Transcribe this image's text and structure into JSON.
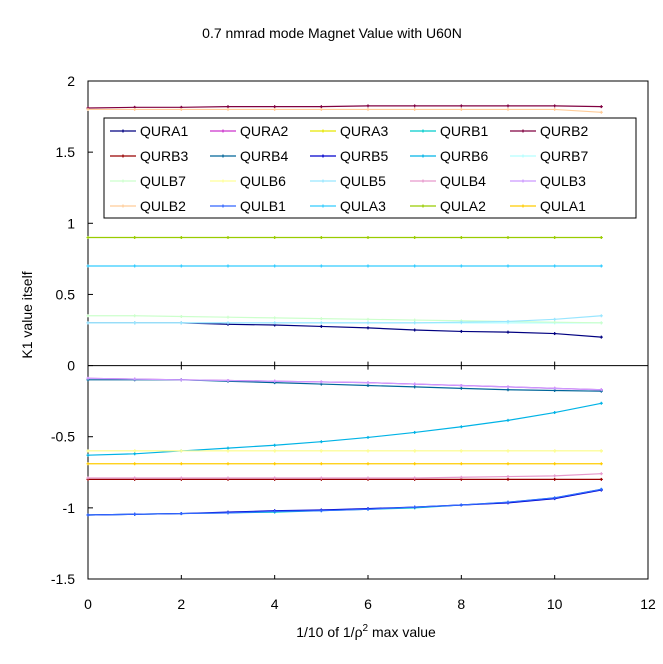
{
  "chart_data": {
    "type": "line",
    "title": "0.7 nmrad mode Magnet Value with U60N",
    "xlabel_prefix": "1/10 of 1/",
    "xlabel_rho": "ρ",
    "xlabel_sup": "2",
    "xlabel_suffix": " max value",
    "ylabel": "K1 value itself",
    "xlim": [
      0,
      12
    ],
    "ylim": [
      -1.5,
      2
    ],
    "xticks": [
      0,
      2,
      4,
      6,
      8,
      10,
      12
    ],
    "yticks": [
      -1.5,
      -1,
      -0.5,
      0,
      0.5,
      1,
      1.5,
      2
    ],
    "ytick_labels": [
      "-1.5",
      "-1",
      "-0.5",
      "0",
      "0.5",
      "1",
      "1.5",
      "2"
    ],
    "xtick_labels": [
      "0",
      "2",
      "4",
      "6",
      "8",
      "10",
      "12"
    ],
    "grid": false,
    "legend_position": "top",
    "x": [
      0,
      1,
      2,
      3,
      4,
      5,
      6,
      7,
      8,
      9,
      10,
      11
    ],
    "series": [
      {
        "name": "QURA1",
        "color": "#000080",
        "values": [
          0.3,
          0.3,
          0.3,
          0.29,
          0.285,
          0.275,
          0.265,
          0.25,
          0.24,
          0.235,
          0.225,
          0.2
        ]
      },
      {
        "name": "QURA2",
        "color": "#cc33cc",
        "values": [
          -0.09,
          -0.095,
          -0.1,
          -0.105,
          -0.11,
          -0.115,
          -0.12,
          -0.13,
          -0.14,
          -0.15,
          -0.16,
          -0.17
        ]
      },
      {
        "name": "QURA3",
        "color": "#e6e600",
        "values": [
          -0.6,
          -0.6,
          -0.6,
          -0.6,
          -0.6,
          -0.6,
          -0.6,
          -0.6,
          -0.6,
          -0.6,
          -0.6,
          -0.6
        ]
      },
      {
        "name": "QURB1",
        "color": "#00cccc",
        "values": [
          -1.05,
          -1.045,
          -1.04,
          -1.035,
          -1.03,
          -1.02,
          -1.01,
          -1.0,
          -0.98,
          -0.96,
          -0.93,
          -0.87
        ]
      },
      {
        "name": "QURB2",
        "color": "#800040",
        "values": [
          1.81,
          1.815,
          1.815,
          1.82,
          1.82,
          1.82,
          1.825,
          1.825,
          1.825,
          1.825,
          1.825,
          1.82
        ]
      },
      {
        "name": "QURB3",
        "color": "#990000",
        "values": [
          -0.8,
          -0.8,
          -0.8,
          -0.8,
          -0.8,
          -0.8,
          -0.8,
          -0.8,
          -0.8,
          -0.8,
          -0.8,
          -0.8
        ]
      },
      {
        "name": "QURB4",
        "color": "#006699",
        "values": [
          -0.1,
          -0.1,
          -0.1,
          -0.11,
          -0.12,
          -0.13,
          -0.14,
          -0.15,
          -0.16,
          -0.17,
          -0.175,
          -0.18
        ]
      },
      {
        "name": "QURB5",
        "color": "#0000cc",
        "values": [
          -1.05,
          -1.045,
          -1.04,
          -1.03,
          -1.02,
          -1.015,
          -1.005,
          -0.995,
          -0.98,
          -0.965,
          -0.935,
          -0.875
        ]
      },
      {
        "name": "QURB6",
        "color": "#00b3e6",
        "values": [
          -0.63,
          -0.62,
          -0.6,
          -0.58,
          -0.56,
          -0.535,
          -0.505,
          -0.47,
          -0.43,
          -0.385,
          -0.33,
          -0.265
        ]
      },
      {
        "name": "QURB7",
        "color": "#b3ffff",
        "values": [
          0.3,
          0.3,
          0.3,
          0.3,
          0.3,
          0.3,
          0.3,
          0.3,
          0.3,
          0.3,
          0.3,
          0.3
        ]
      },
      {
        "name": "QULB7",
        "color": "#ccffcc",
        "values": [
          0.35,
          0.35,
          0.345,
          0.34,
          0.335,
          0.33,
          0.325,
          0.32,
          0.315,
          0.31,
          0.305,
          0.3
        ]
      },
      {
        "name": "QULB6",
        "color": "#ffff99",
        "values": [
          -0.6,
          -0.6,
          -0.6,
          -0.6,
          -0.6,
          -0.6,
          -0.6,
          -0.6,
          -0.6,
          -0.6,
          -0.6,
          -0.6
        ]
      },
      {
        "name": "QULB5",
        "color": "#99e6ff",
        "values": [
          0.3,
          0.3,
          0.3,
          0.3,
          0.3,
          0.3,
          0.3,
          0.3,
          0.305,
          0.31,
          0.325,
          0.35
        ]
      },
      {
        "name": "QULB4",
        "color": "#e699cc",
        "values": [
          -0.79,
          -0.79,
          -0.79,
          -0.79,
          -0.79,
          -0.79,
          -0.79,
          -0.79,
          -0.785,
          -0.78,
          -0.775,
          -0.76
        ]
      },
      {
        "name": "QULB3",
        "color": "#cc99ff",
        "values": [
          -0.09,
          -0.095,
          -0.1,
          -0.105,
          -0.11,
          -0.115,
          -0.12,
          -0.13,
          -0.14,
          -0.15,
          -0.16,
          -0.17
        ]
      },
      {
        "name": "QULB2",
        "color": "#ffcc99",
        "values": [
          1.8,
          1.8,
          1.8,
          1.8,
          1.8,
          1.8,
          1.8,
          1.8,
          1.8,
          1.8,
          1.8,
          1.78
        ]
      },
      {
        "name": "QULB1",
        "color": "#3366ff",
        "values": [
          -1.05,
          -1.045,
          -1.04,
          -1.035,
          -1.025,
          -1.02,
          -1.01,
          -0.995,
          -0.98,
          -0.96,
          -0.93,
          -0.87
        ]
      },
      {
        "name": "QULA3",
        "color": "#33ccff",
        "values": [
          0.7,
          0.7,
          0.7,
          0.7,
          0.7,
          0.7,
          0.7,
          0.7,
          0.7,
          0.7,
          0.7,
          0.7
        ]
      },
      {
        "name": "QULA2",
        "color": "#99cc00",
        "values": [
          0.9,
          0.9,
          0.9,
          0.9,
          0.9,
          0.9,
          0.9,
          0.9,
          0.9,
          0.9,
          0.9,
          0.9
        ]
      },
      {
        "name": "QULA1",
        "color": "#ffcc00",
        "values": [
          -0.69,
          -0.69,
          -0.69,
          -0.69,
          -0.69,
          -0.69,
          -0.69,
          -0.69,
          -0.69,
          -0.69,
          -0.69,
          -0.69
        ]
      }
    ]
  }
}
